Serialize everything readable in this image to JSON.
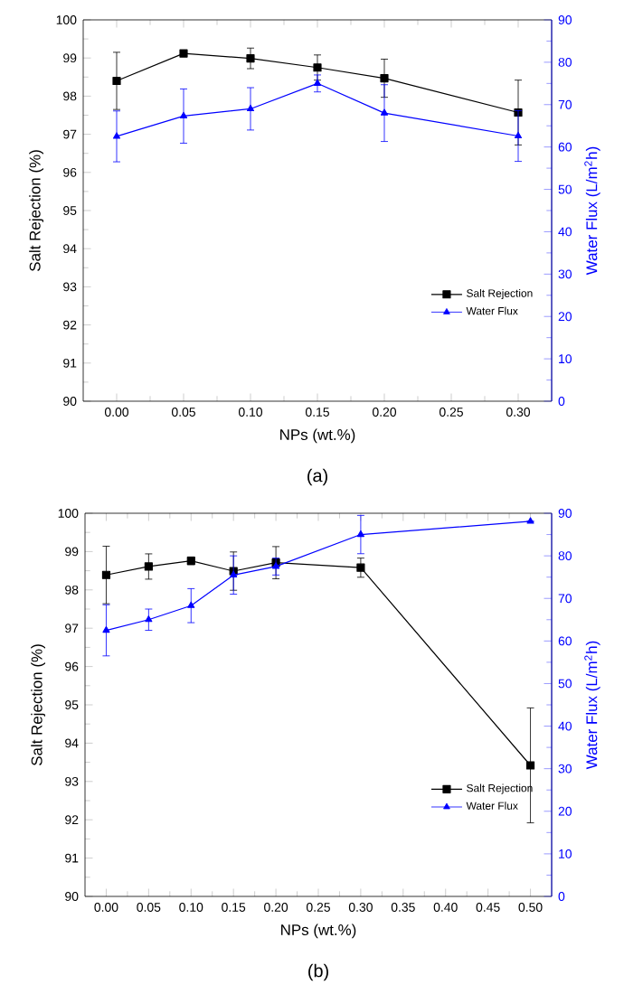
{
  "chart_data": [
    {
      "type": "line",
      "xlabel": "NPs (wt.%)",
      "ylabel": "Salt Rejection (%)",
      "y2label": "Water Flux (L/m$^{2}$h)",
      "annotations": [
        "(a)"
      ],
      "x": [
        0.0,
        0.05,
        0.1,
        0.15,
        0.2,
        0.3
      ],
      "xlim": [
        -0.025,
        0.325
      ],
      "xticks": [
        {
          "value": 0,
          "label": "0.00"
        },
        {
          "value": 0.05,
          "label": "0.05"
        },
        {
          "value": 0.1,
          "label": "0.10"
        },
        {
          "value": 0.15,
          "label": "0.15"
        },
        {
          "value": 0.2,
          "label": "0.20"
        },
        {
          "value": 0.25,
          "label": "0.25"
        },
        {
          "value": 0.3,
          "label": "0.30"
        }
      ],
      "ylim": [
        90,
        100
      ],
      "yticks": [
        90,
        91,
        92,
        93,
        94,
        95,
        96,
        97,
        98,
        99,
        100
      ],
      "y2lim": [
        0,
        90
      ],
      "y2ticks": [
        0,
        10,
        20,
        30,
        40,
        50,
        60,
        70,
        80,
        90
      ],
      "legend": "bottom right",
      "series": [
        {
          "name": "Salt Rejection",
          "color": "#000000",
          "marker": "square",
          "values": [
            98.4,
            99.12,
            98.99,
            98.75,
            98.47,
            97.57
          ],
          "errors": [
            0.75,
            0.05,
            0.27,
            0.33,
            0.5,
            0.85
          ]
        },
        {
          "name": "Water Flux",
          "color": "#0000ff",
          "marker": "triangle",
          "axis": "y2",
          "values": [
            62.5,
            67.3,
            69.0,
            75.0,
            68.0,
            62.6
          ],
          "errors": [
            6,
            6.4,
            5,
            2,
            6.7,
            6
          ]
        }
      ]
    },
    {
      "type": "line",
      "xlabel": "NPs (wt.%)",
      "ylabel": "Salt Rejection (%)",
      "y2label": "Water Flux (L/m$^{2}$h)",
      "annotations": [
        "(b)"
      ],
      "x": [
        0.0,
        0.05,
        0.1,
        0.15,
        0.2,
        0.3,
        0.5
      ],
      "xlim": [
        -0.025,
        0.525
      ],
      "xticks": [
        {
          "value": 0,
          "label": "0.00"
        },
        {
          "value": 0.05,
          "label": "0.05"
        },
        {
          "value": 0.1,
          "label": "0.10"
        },
        {
          "value": 0.15,
          "label": "0.15"
        },
        {
          "value": 0.2,
          "label": "0.20"
        },
        {
          "value": 0.25,
          "label": "0.25"
        },
        {
          "value": 0.3,
          "label": "0.30"
        },
        {
          "value": 0.35,
          "label": "0.35"
        },
        {
          "value": 0.4,
          "label": "0.40"
        },
        {
          "value": 0.45,
          "label": "0.45"
        },
        {
          "value": 0.5,
          "label": "0.50"
        }
      ],
      "ylim": [
        90,
        100
      ],
      "yticks": [
        90,
        91,
        92,
        93,
        94,
        95,
        96,
        97,
        98,
        99,
        100
      ],
      "y2lim": [
        0,
        90
      ],
      "y2ticks": [
        0,
        10,
        20,
        30,
        40,
        50,
        60,
        70,
        80,
        90
      ],
      "legend": "bottom right",
      "series": [
        {
          "name": "Salt Rejection",
          "color": "#000000",
          "marker": "square",
          "values": [
            98.39,
            98.61,
            98.76,
            98.49,
            98.71,
            98.58,
            93.42
          ],
          "errors": [
            0.75,
            0.33,
            0.1,
            0.5,
            0.42,
            0.25,
            1.5
          ]
        },
        {
          "name": "Water Flux",
          "color": "#0000ff",
          "marker": "triangle",
          "axis": "y2",
          "values": [
            62.5,
            65.0,
            68.3,
            75.5,
            77.5,
            85.0,
            88.1
          ],
          "errors": [
            6,
            2.5,
            4,
            4.5,
            2,
            4.5,
            null
          ]
        }
      ]
    }
  ]
}
